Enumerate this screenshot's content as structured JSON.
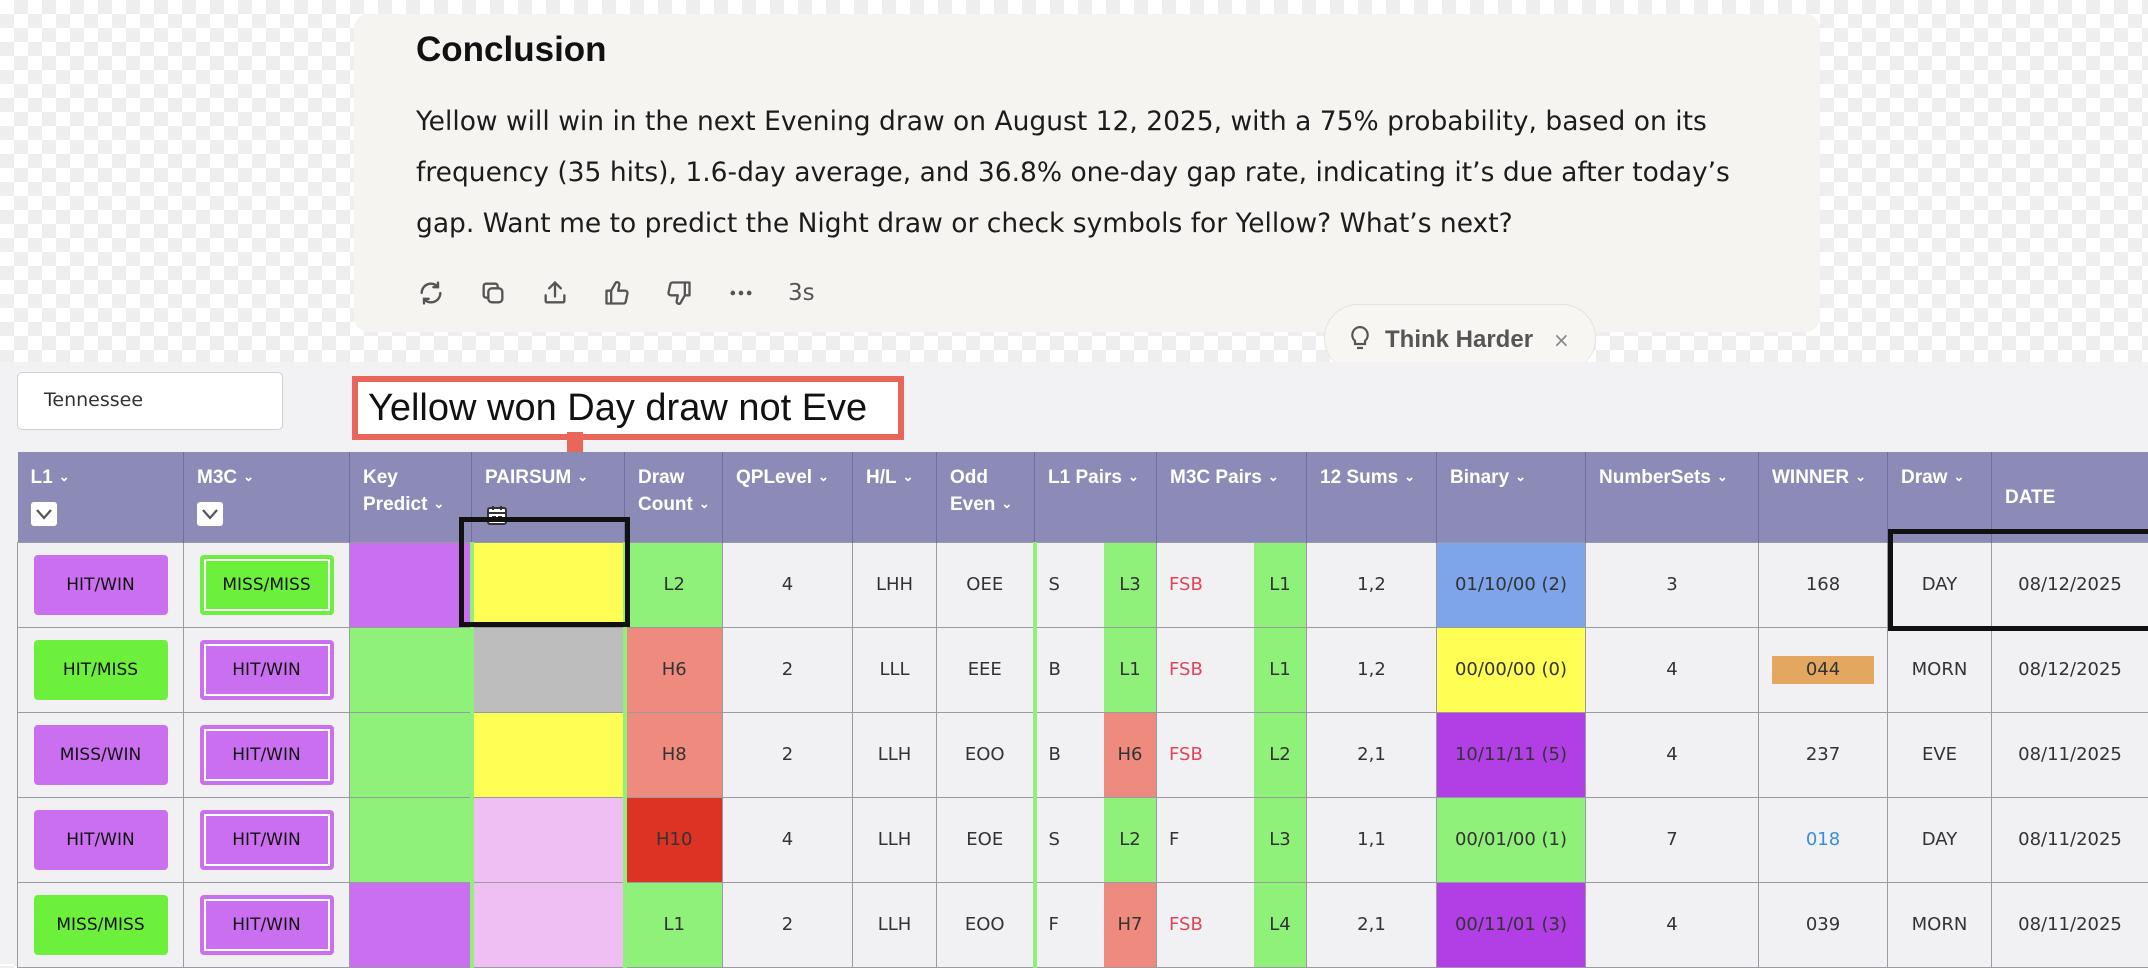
{
  "chat": {
    "title": "Conclusion",
    "paragraph": "Yellow will win in the next Evening draw on August 12, 2025, with a 75% probability, based on its frequency (35 hits), 1.6-day average, and 36.8% one-day gap rate, indicating it’s due after today’s gap. Want me to predict the Night draw or check symbols for Yellow? What’s next?",
    "response_time": "3s",
    "think_harder_label": "Think Harder",
    "think_close": "×",
    "action_icons": [
      "refresh-icon",
      "copy-icon",
      "share-icon",
      "thumbs-up-icon",
      "thumbs-down-icon",
      "more-icon"
    ]
  },
  "state_field": {
    "value": "Tennessee"
  },
  "annotation": {
    "text": "Yellow won Day draw not Eve",
    "color": "#e8675a"
  },
  "table": {
    "headers": {
      "l1": "L1",
      "m3c": "M3C",
      "key_predict_1": "Key",
      "key_predict_2": "Predict",
      "pairs": "PAIRSUM",
      "draw_count_1": "Draw",
      "draw_count_2": "Count",
      "qp_level": "QPLevel",
      "hl": "H/L",
      "odd_even_1": "Odd",
      "odd_even_2": "Even",
      "l1_pairs": "L1 Pairs",
      "m3c_pairs": "M3C Pairs",
      "sums": "12 Sums",
      "binary": "Binary",
      "number_sets": "NumberSets",
      "winner": "WINNER",
      "draw": "Draw",
      "date": "DATE"
    },
    "rows": [
      {
        "l1": "HIT/WIN",
        "l1_color": "#c96ff0",
        "m3c": "MISS/MISS",
        "m3c_color": "#6cf03c",
        "key_color": "#c96ff0",
        "pair_color": "#fefe55",
        "draw_count": "L2",
        "dc_color": "#8ff07a",
        "qp": "4",
        "hl": "LHH",
        "oe": "OEE",
        "l1p_a": "S",
        "l1p_b": "L3",
        "l1p_b_color": "#8ff07a",
        "m3p_a": "FSB",
        "m3p_red": true,
        "m3p_b": "L1",
        "m3p_b_color": "#8ff07a",
        "sums": "1,2",
        "binary": "01/10/00 (2)",
        "binary_color": "#7ea4ea",
        "ns": "3",
        "winner": "168",
        "winner_style": "plain",
        "draw": "DAY",
        "date": "08/12/2025"
      },
      {
        "l1": "HIT/MISS",
        "l1_color": "#6cf03c",
        "m3c": "HIT/WIN",
        "m3c_color": "#c96ff0",
        "key_color": "#8ff07a",
        "pair_color": "#bdbdbd",
        "draw_count": "H6",
        "dc_color": "#ef8a7f",
        "qp": "2",
        "hl": "LLL",
        "oe": "EEE",
        "l1p_a": "B",
        "l1p_b": "L1",
        "l1p_b_color": "#8ff07a",
        "m3p_a": "FSB",
        "m3p_red": true,
        "m3p_b": "L1",
        "m3p_b_color": "#8ff07a",
        "sums": "1,2",
        "binary": "00/00/00 (0)",
        "binary_color": "#fefe55",
        "ns": "4",
        "winner": "044",
        "winner_style": "badge",
        "draw": "MORN",
        "date": "08/12/2025"
      },
      {
        "l1": "MISS/WIN",
        "l1_color": "#c96ff0",
        "m3c": "HIT/WIN",
        "m3c_color": "#c96ff0",
        "key_color": "#8ff07a",
        "pair_color": "#fefe55",
        "draw_count": "H8",
        "dc_color": "#ef8a7f",
        "qp": "2",
        "hl": "LLH",
        "oe": "EOO",
        "l1p_a": "B",
        "l1p_b": "H6",
        "l1p_b_color": "#ef8a7f",
        "m3p_a": "FSB",
        "m3p_red": true,
        "m3p_b": "L2",
        "m3p_b_color": "#8ff07a",
        "sums": "2,1",
        "binary": "10/11/11 (5)",
        "binary_color": "#b23ee6",
        "ns": "4",
        "winner": "237",
        "winner_style": "plain",
        "draw": "EVE",
        "date": "08/11/2025"
      },
      {
        "l1": "HIT/WIN",
        "l1_color": "#c96ff0",
        "m3c": "HIT/WIN",
        "m3c_color": "#c96ff0",
        "key_color": "#8ff07a",
        "pair_color": "#efbff3",
        "draw_count": "H10",
        "dc_color": "#dc3325",
        "qp": "4",
        "hl": "LLH",
        "oe": "EOE",
        "l1p_a": "S",
        "l1p_b": "L2",
        "l1p_b_color": "#8ff07a",
        "m3p_a": "F",
        "m3p_red": false,
        "m3p_b": "L3",
        "m3p_b_color": "#8ff07a",
        "sums": "1,1",
        "binary": "00/01/00 (1)",
        "binary_color": "#8ff07a",
        "ns": "7",
        "winner": "018",
        "winner_style": "link",
        "draw": "DAY",
        "date": "08/11/2025"
      },
      {
        "l1": "MISS/MISS",
        "l1_color": "#6cf03c",
        "m3c": "HIT/WIN",
        "m3c_color": "#c96ff0",
        "key_color": "#c96ff0",
        "pair_color": "#efbff3",
        "draw_count": "L1",
        "dc_color": "#8ff07a",
        "qp": "2",
        "hl": "LLH",
        "oe": "EOO",
        "l1p_a": "F",
        "l1p_b": "H7",
        "l1p_b_color": "#ef8a7f",
        "m3p_a": "FSB",
        "m3p_red": true,
        "m3p_b": "L4",
        "m3p_b_color": "#8ff07a",
        "sums": "2,1",
        "binary": "00/11/01 (3)",
        "binary_color": "#b23ee6",
        "ns": "4",
        "winner": "039",
        "winner_style": "plain",
        "draw": "MORN",
        "date": "08/11/2025"
      }
    ]
  }
}
